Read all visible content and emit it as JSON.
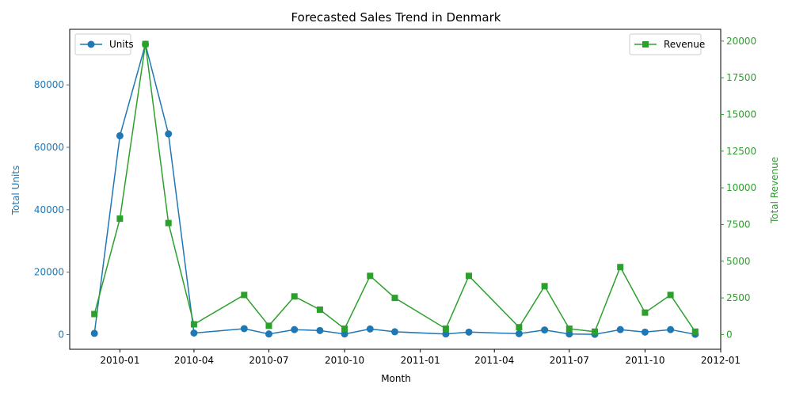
{
  "chart_data": {
    "type": "line",
    "title": "Forecasted Sales Trend in Denmark",
    "xlabel": "Month",
    "ylabel_left": "Total Units",
    "ylabel_right": "Total Revenue",
    "xlim": [
      "2009-11-01",
      "2012-01-01"
    ],
    "ylim_left": [
      -4700,
      97800
    ],
    "ylim_right": [
      -1000,
      20800
    ],
    "x_ticks": [
      {
        "date": "2010-01-01",
        "label": "2010-01"
      },
      {
        "date": "2010-04-01",
        "label": "2010-04"
      },
      {
        "date": "2010-07-01",
        "label": "2010-07"
      },
      {
        "date": "2010-10-01",
        "label": "2010-10"
      },
      {
        "date": "2011-01-01",
        "label": "2011-01"
      },
      {
        "date": "2011-04-01",
        "label": "2011-04"
      },
      {
        "date": "2011-07-01",
        "label": "2011-07"
      },
      {
        "date": "2011-10-01",
        "label": "2011-10"
      },
      {
        "date": "2012-01-01",
        "label": "2012-01"
      }
    ],
    "y_ticks_left": [
      0,
      20000,
      40000,
      60000,
      80000
    ],
    "y_ticks_right": [
      0,
      2500,
      5000,
      7500,
      10000,
      12500,
      15000,
      17500,
      20000
    ],
    "x": [
      "2009-12-01",
      "2010-01-01",
      "2010-02-01",
      "2010-03-01",
      "2010-04-01",
      "2010-06-01",
      "2010-07-01",
      "2010-08-01",
      "2010-09-01",
      "2010-10-01",
      "2010-11-01",
      "2010-12-01",
      "2011-02-01",
      "2011-03-01",
      "2011-05-01",
      "2011-06-01",
      "2011-07-01",
      "2011-08-01",
      "2011-09-01",
      "2011-10-01",
      "2011-11-01",
      "2011-12-01"
    ],
    "series": [
      {
        "name": "Units",
        "axis": "left",
        "color": "#1f77b4",
        "marker": "circle",
        "values": [
          400,
          63700,
          93000,
          64300,
          500,
          1900,
          200,
          1600,
          1300,
          200,
          1800,
          900,
          200,
          800,
          300,
          1500,
          200,
          100,
          1600,
          800,
          1600,
          100
        ]
      },
      {
        "name": "Revenue",
        "axis": "right",
        "color": "#2ca02c",
        "marker": "square",
        "values": [
          1400,
          7900,
          19800,
          7600,
          700,
          2700,
          600,
          2600,
          1700,
          400,
          4000,
          2500,
          400,
          4000,
          500,
          3300,
          400,
          200,
          4600,
          1500,
          2700,
          200
        ]
      }
    ],
    "legend_left": {
      "label": "Units",
      "placement": "upper-left"
    },
    "legend_right": {
      "label": "Revenue",
      "placement": "upper-right"
    },
    "grid": false
  }
}
